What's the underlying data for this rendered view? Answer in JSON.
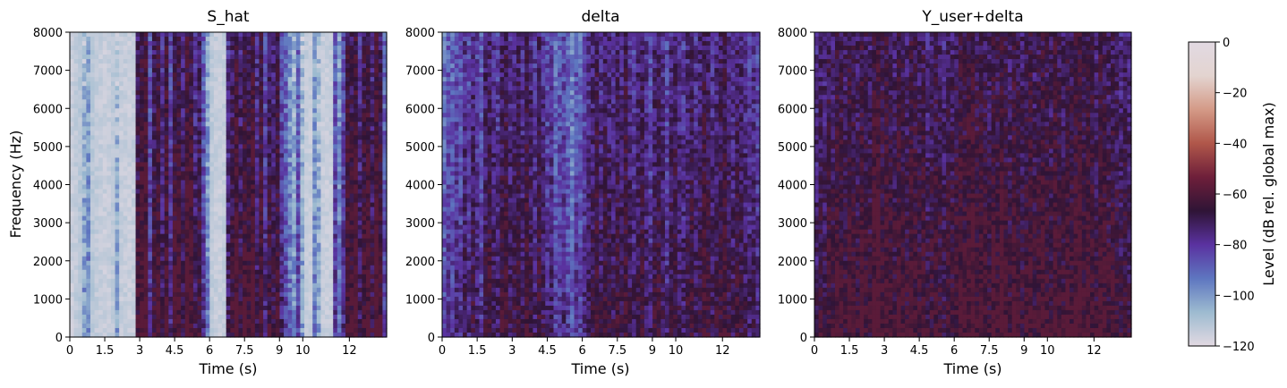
{
  "chart_data": {
    "type": "heatmap",
    "panels": [
      {
        "title": "S_hat",
        "xlabel": "Time (s)",
        "ylabel": "Frequency (Hz)",
        "xlim": [
          0,
          13.6
        ],
        "ylim": [
          0,
          8000
        ],
        "xticks": [
          0,
          1.5,
          3,
          4.5,
          6,
          7.5,
          9,
          10,
          12
        ],
        "yticks": [
          0,
          1000,
          2000,
          3000,
          4000,
          5000,
          6000,
          7000,
          8000
        ],
        "activity": [
          0.08,
          0.12,
          0.18,
          0.22,
          0.28,
          0.18,
          0.12,
          0.1,
          0.08,
          0.1,
          0.15,
          0.2,
          0.1,
          0.1,
          0.08,
          0.1,
          0.82,
          0.9,
          0.95,
          0.55,
          0.8,
          0.9,
          0.7,
          0.92,
          0.6,
          0.85,
          0.9,
          0.75,
          0.95,
          0.9,
          0.7,
          0.8,
          0.55,
          0.3,
          0.15,
          0.1,
          0.08,
          0.12,
          0.7,
          0.8,
          0.95,
          0.75,
          0.9,
          0.85,
          0.95,
          0.7,
          0.9,
          0.6,
          0.8,
          0.75,
          0.85,
          0.6,
          0.5,
          0.35,
          0.25,
          0.5,
          0.2,
          0.1,
          0.08,
          0.3,
          0.2,
          0.1,
          0.08,
          0.1,
          0.55,
          0.35,
          0.6,
          0.9,
          0.85,
          0.95,
          0.7,
          0.85,
          0.9,
          0.75,
          0.95,
          0.85,
          0.5
        ]
      },
      {
        "title": "delta",
        "xlabel": "Time (s)",
        "ylabel": "",
        "xlim": [
          0,
          13.6
        ],
        "ylim": [
          0,
          8000
        ],
        "xticks": [
          0,
          1.5,
          3,
          4.5,
          6,
          7.5,
          9,
          10,
          12
        ],
        "yticks": [
          0,
          1000,
          2000,
          3000,
          4000,
          5000,
          6000,
          7000,
          8000
        ],
        "activity": [
          0.45,
          0.55,
          0.5,
          0.6,
          0.55,
          0.7,
          0.6,
          0.75,
          0.65,
          0.55,
          0.75,
          0.8,
          0.7,
          0.65,
          0.8,
          0.85,
          0.7,
          0.75,
          0.8,
          0.7,
          0.85,
          0.75,
          0.65,
          0.8,
          0.7,
          0.6,
          0.65,
          0.5,
          0.55,
          0.6,
          0.5,
          0.4,
          0.55,
          0.5,
          0.6,
          0.7,
          0.75,
          0.85,
          0.7,
          0.8,
          0.75,
          0.7,
          0.8,
          0.75,
          0.85,
          0.7,
          0.65,
          0.75,
          0.8,
          0.7,
          0.6,
          0.75,
          0.8,
          0.7,
          0.6,
          0.75,
          0.8,
          0.7,
          0.65,
          0.75,
          0.8,
          0.7,
          0.75,
          0.85,
          0.8,
          0.7,
          0.75,
          0.8,
          0.85,
          0.75,
          0.7,
          0.8,
          0.75,
          0.7,
          0.65,
          0.7,
          0.6
        ]
      },
      {
        "title": "Y_user+delta",
        "xlabel": "Time (s)",
        "ylabel": "",
        "xlim": [
          0,
          13.6
        ],
        "ylim": [
          0,
          8000
        ],
        "xticks": [
          0,
          1.5,
          3,
          4.5,
          6,
          7.5,
          9,
          10,
          12
        ],
        "yticks": [
          0,
          1000,
          2000,
          3000,
          4000,
          5000,
          6000,
          7000,
          8000
        ],
        "activity": [
          0.7,
          0.8,
          0.75,
          0.85,
          0.8,
          0.9,
          0.85,
          0.8,
          0.9,
          0.85,
          0.8,
          0.9,
          0.85,
          0.8,
          0.9,
          0.95,
          0.85,
          0.9,
          0.85,
          0.8,
          0.9,
          0.85,
          0.8,
          0.9,
          0.85,
          0.8,
          0.85,
          0.75,
          0.8,
          0.85,
          0.8,
          0.75,
          0.85,
          0.8,
          0.85,
          0.9,
          0.85,
          0.9,
          0.95,
          0.85,
          0.9,
          0.85,
          0.8,
          0.9,
          0.85,
          0.95,
          0.85,
          0.8,
          0.9,
          0.85,
          0.8,
          0.85,
          0.9,
          0.8,
          0.85,
          0.9,
          0.85,
          0.8,
          0.9,
          0.85,
          0.8,
          0.9,
          0.85,
          0.9,
          0.95,
          0.85,
          0.9,
          0.85,
          0.8,
          0.9,
          0.85,
          0.8,
          0.85,
          0.8,
          0.75,
          0.8,
          0.75
        ]
      }
    ],
    "colorbar": {
      "label": "Level (dB rel. global max)",
      "range": [
        -120,
        0
      ],
      "ticks": [
        0,
        -20,
        -40,
        -60,
        -80,
        -100,
        -120
      ],
      "colormap": [
        "#e2d9e2",
        "#9dbbd0",
        "#5e76c0",
        "#5a32a0",
        "#2f1436",
        "#6e1f3a",
        "#b0574a",
        "#d49a87",
        "#e3d4d0",
        "#e2d9e2"
      ]
    }
  }
}
